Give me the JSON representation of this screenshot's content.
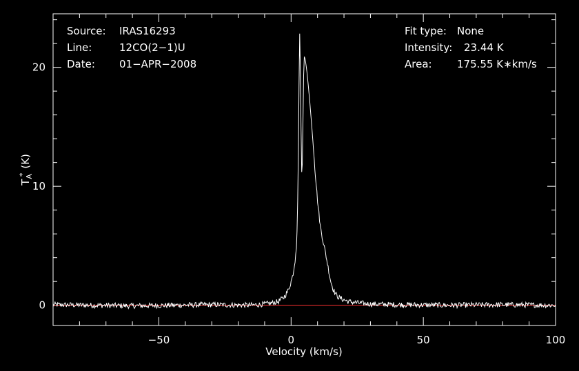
{
  "chart_data": {
    "type": "line",
    "xlabel": "Velocity (km/s)",
    "ylabel": "T",
    "ylabel_sub": "A",
    "ylabel_sup": "*",
    "ylabel_unit": "(K)",
    "xlim": [
      -90,
      100
    ],
    "ylim": [
      -1.7,
      24.5
    ],
    "x_ticks": [
      -50,
      0,
      50,
      100
    ],
    "x_tick_labels": [
      "−50",
      "0",
      "50",
      "100"
    ],
    "y_ticks": [
      0,
      10,
      20
    ],
    "y_tick_labels": [
      "0",
      "10",
      "20"
    ],
    "grid": false,
    "baseline": {
      "y": 0,
      "color": "#ff3333"
    },
    "info_left": [
      {
        "label": "Source:",
        "value": "IRAS16293"
      },
      {
        "label": "Line:",
        "value": "12CO(2−1)U"
      },
      {
        "label": "Date:",
        "value": "01−APR−2008"
      }
    ],
    "info_right": [
      {
        "label": "Fit type:",
        "value": "None"
      },
      {
        "label": "Intensity:",
        "value": "23.44 K"
      },
      {
        "label": "Area:",
        "value": "175.55 K∗km/s"
      }
    ],
    "series": [
      {
        "color": "#ffffff",
        "points": [
          [
            -90,
            0.05
          ],
          [
            -60,
            -0.05
          ],
          [
            -30,
            0.05
          ],
          [
            -15,
            0.0
          ],
          [
            -10,
            0.1
          ],
          [
            -7,
            0.2
          ],
          [
            -5,
            0.3
          ],
          [
            -3,
            0.6
          ],
          [
            -2,
            0.9
          ],
          [
            -1,
            1.3
          ],
          [
            0,
            2.0
          ],
          [
            0.5,
            2.4
          ],
          [
            1,
            3.0
          ],
          [
            1.5,
            3.8
          ],
          [
            2,
            4.8
          ],
          [
            2.3,
            6.5
          ],
          [
            2.6,
            10.0
          ],
          [
            2.9,
            16.0
          ],
          [
            3.1,
            21.0
          ],
          [
            3.3,
            23.44
          ],
          [
            3.5,
            20.0
          ],
          [
            3.8,
            14.0
          ],
          [
            4.1,
            9.8
          ],
          [
            4.4,
            14.0
          ],
          [
            4.7,
            19.0
          ],
          [
            5.0,
            20.9
          ],
          [
            5.4,
            20.6
          ],
          [
            6.0,
            19.6
          ],
          [
            7.0,
            17.3
          ],
          [
            8.0,
            14.5
          ],
          [
            9.0,
            11.5
          ],
          [
            10.0,
            8.8
          ],
          [
            11.0,
            6.7
          ],
          [
            12.0,
            5.5
          ],
          [
            13.0,
            4.4
          ],
          [
            14.0,
            3.2
          ],
          [
            15.0,
            2.0
          ],
          [
            16.0,
            1.3
          ],
          [
            17.0,
            0.9
          ],
          [
            18.0,
            0.65
          ],
          [
            20.0,
            0.45
          ],
          [
            22.0,
            0.3
          ],
          [
            25.0,
            0.2
          ],
          [
            30.0,
            0.1
          ],
          [
            40.0,
            0.05
          ],
          [
            60.0,
            0.0
          ],
          [
            80.0,
            0.05
          ],
          [
            100.0,
            0.0
          ]
        ]
      }
    ]
  }
}
